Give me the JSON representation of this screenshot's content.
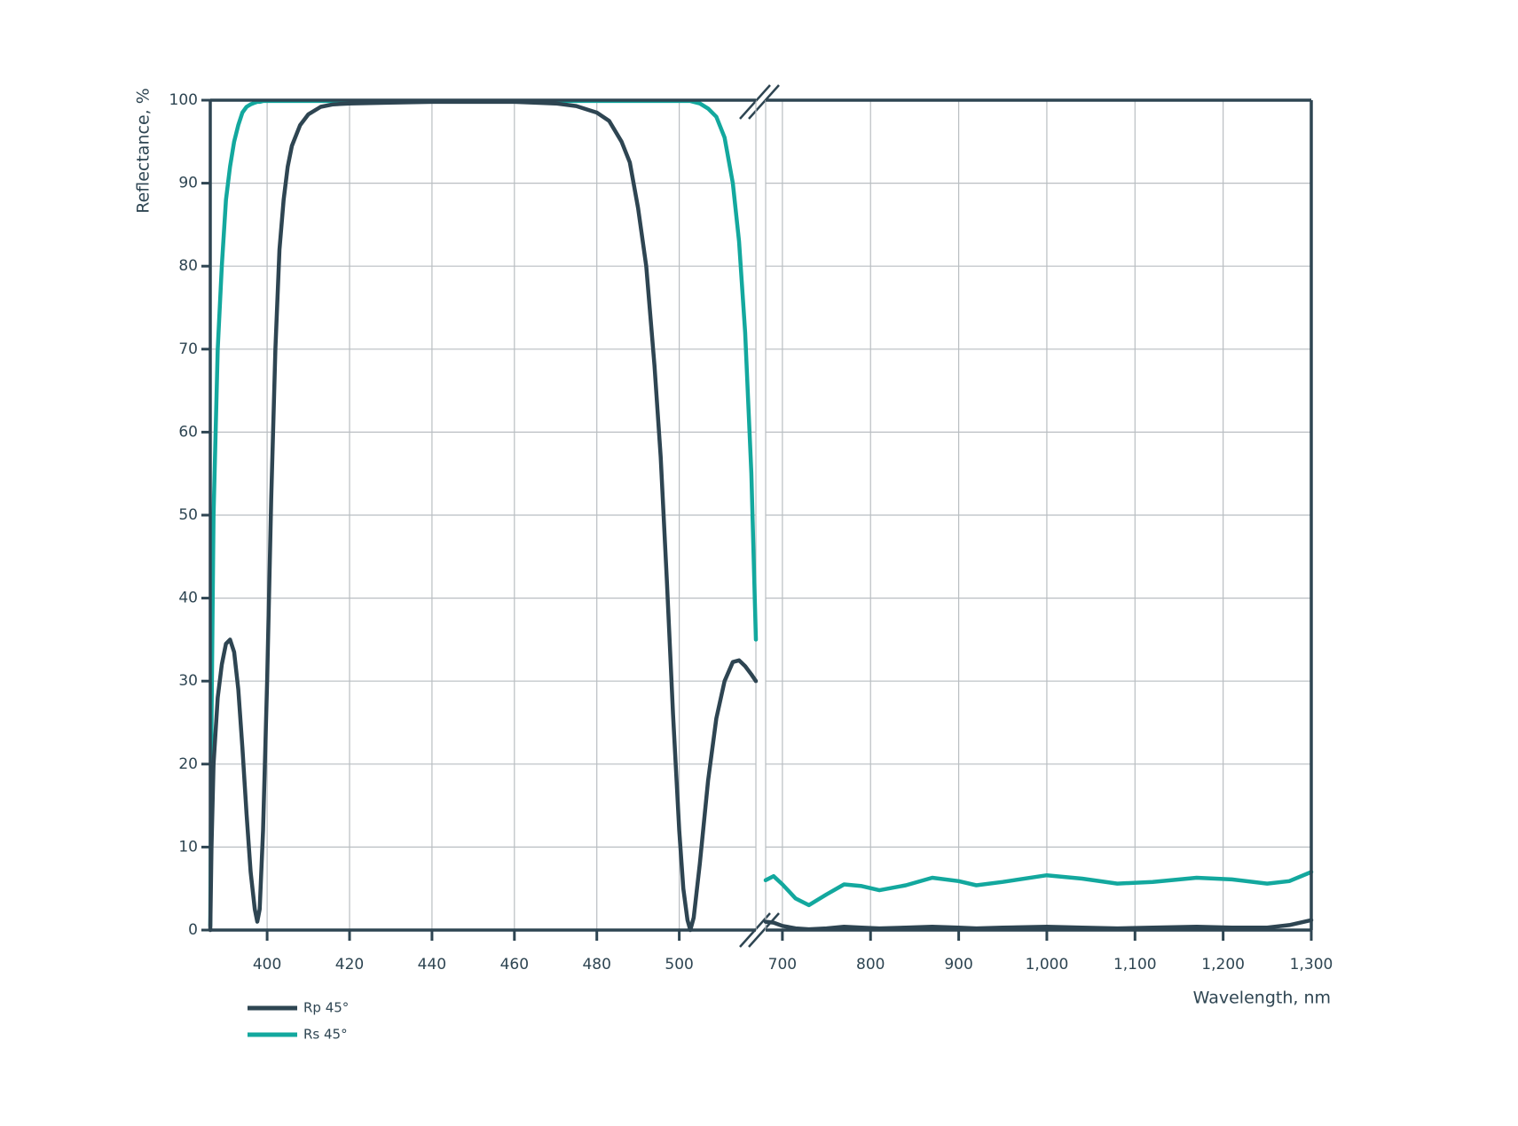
{
  "chart_data": [
    {
      "type": "line",
      "ylabel": "Reflectance, %",
      "x": [
        386.2,
        386.5,
        387,
        388,
        389,
        390,
        391,
        392,
        393,
        394,
        395,
        396,
        397,
        397.6,
        398.2,
        399,
        400,
        401,
        402,
        403,
        404,
        405,
        406,
        408,
        410,
        413,
        416,
        420,
        430,
        440,
        450,
        460,
        470,
        475,
        480,
        483,
        486,
        488,
        490,
        492,
        494,
        495.5,
        497,
        498.5,
        500,
        501,
        502,
        502.7,
        503.5,
        505,
        507,
        509,
        511,
        513,
        514.5,
        516,
        517.5,
        518.6
      ],
      "series": [
        {
          "name": "Rp 45°",
          "color": "#2e4552",
          "values": [
            0,
            10,
            20,
            28,
            32,
            34.5,
            35,
            33.5,
            29,
            22,
            14,
            7,
            2.5,
            1,
            2.5,
            12,
            30,
            52,
            70,
            82,
            88,
            92,
            94.5,
            97,
            98.3,
            99.2,
            99.5,
            99.6,
            99.7,
            99.8,
            99.8,
            99.8,
            99.6,
            99.3,
            98.5,
            97.5,
            95,
            92.5,
            87,
            80,
            68,
            57,
            42,
            26,
            12,
            5,
            1.2,
            0,
            1.5,
            8,
            18,
            25.5,
            30,
            32.3,
            32.5,
            31.8,
            30.8,
            30
          ],
          "ys": [
            0.5,
            25,
            50,
            70,
            80,
            88,
            92,
            95,
            97,
            98.5,
            99.2,
            99.5,
            99.7,
            99.8,
            99.8,
            99.9,
            99.9,
            99.9,
            99.9,
            99.9,
            99.9,
            99.9,
            99.9,
            99.9,
            99.9,
            99.9,
            99.9,
            99.9,
            99.9,
            99.9,
            99.9,
            99.9,
            99.9,
            99.9,
            99.9,
            99.9,
            99.9,
            99.9,
            99.9,
            99.9,
            99.9,
            99.9,
            99.9,
            99.9,
            99.9,
            99.9,
            99.9,
            99.9,
            99.8,
            99.6,
            99,
            98,
            95.5,
            90,
            83,
            72,
            55,
            35
          ]
        }
      ],
      "xlim": [
        386.2,
        518.6
      ],
      "ylim": [
        0,
        100
      ],
      "xticks": [
        400,
        420,
        440,
        460,
        480,
        500
      ],
      "yticks": [
        0,
        10,
        20,
        30,
        40,
        50,
        60,
        70,
        80,
        90,
        100
      ]
    },
    {
      "type": "line",
      "xlabel": "Wavelength, nm",
      "x": [
        681,
        690,
        700,
        715,
        730,
        750,
        770,
        790,
        810,
        840,
        870,
        900,
        920,
        950,
        1000,
        1040,
        1080,
        1120,
        1170,
        1210,
        1250,
        1275,
        1300
      ],
      "series": [
        {
          "name": "Rp 45°",
          "color": "#2e4552",
          "values": [
            1,
            0.9,
            0.5,
            0.2,
            0.1,
            0.2,
            0.4,
            0.3,
            0.2,
            0.3,
            0.4,
            0.3,
            0.2,
            0.3,
            0.4,
            0.3,
            0.2,
            0.3,
            0.4,
            0.3,
            0.3,
            0.6,
            1.2
          ]
        },
        {
          "name": "Rs 45°",
          "color": "#13a89e",
          "values": [
            6,
            6.5,
            5.5,
            3.8,
            3,
            4.3,
            5.5,
            5.3,
            4.8,
            5.4,
            6.3,
            5.9,
            5.4,
            5.8,
            6.6,
            6.2,
            5.6,
            5.8,
            6.3,
            6.1,
            5.6,
            5.9,
            7
          ]
        }
      ],
      "xlim": [
        681,
        1300
      ],
      "ylim": [
        0,
        100
      ],
      "xticks": [
        700,
        800,
        900,
        {
          "value": 1000,
          "label": "1,000"
        },
        {
          "value": 1100,
          "label": "1,100"
        },
        {
          "value": 1200,
          "label": "1,200"
        },
        {
          "value": 1300,
          "label": "1,300"
        }
      ]
    }
  ]
}
